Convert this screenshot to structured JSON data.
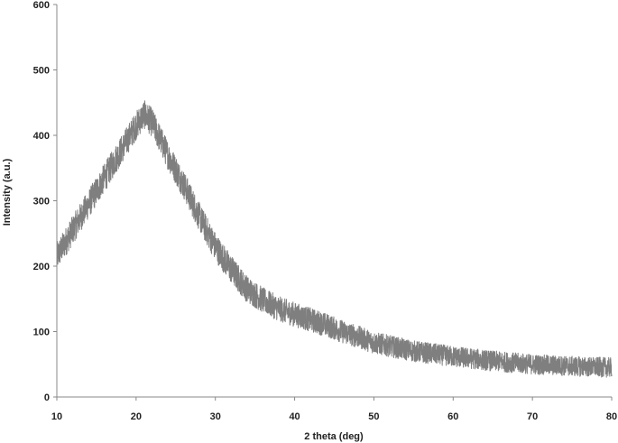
{
  "chart_data": {
    "type": "line",
    "title": "",
    "xlabel": "2 theta (deg)",
    "ylabel": "Intensity (a.u.)",
    "xlim": [
      10,
      80
    ],
    "ylim": [
      0,
      600
    ],
    "xticks": [
      10,
      20,
      30,
      40,
      50,
      60,
      70,
      80
    ],
    "yticks": [
      0,
      100,
      200,
      300,
      400,
      500,
      600
    ],
    "grid": false,
    "legend": "none",
    "series": [
      {
        "color": "#7f7f7f",
        "noise_amplitude": 22,
        "x": [
          10,
          12,
          14,
          16,
          18,
          20,
          21,
          22,
          24,
          26,
          28,
          30,
          32,
          34,
          36,
          38,
          40,
          42,
          44,
          46,
          48,
          50,
          55,
          60,
          65,
          70,
          75,
          80
        ],
        "y": [
          215,
          255,
          295,
          335,
          375,
          415,
          432,
          420,
          370,
          325,
          275,
          230,
          195,
          165,
          148,
          135,
          126,
          118,
          110,
          100,
          92,
          83,
          70,
          62,
          55,
          50,
          47,
          45
        ]
      }
    ]
  }
}
